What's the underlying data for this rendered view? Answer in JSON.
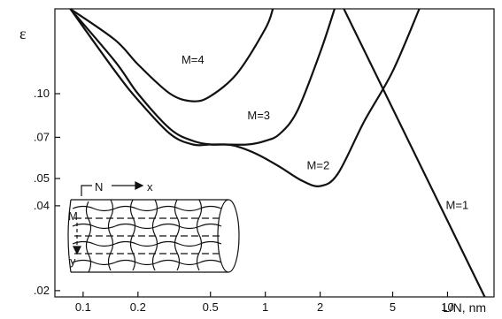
{
  "chart_data": {
    "type": "line",
    "title": "",
    "xlabel": "L/N, nm",
    "ylabel": "ε",
    "x_scale": "log",
    "y_scale": "log",
    "xlim": [
      0.07,
      18
    ],
    "ylim": [
      0.019,
      0.2
    ],
    "x_ticks": [
      {
        "value": 0.1,
        "label": "0.1"
      },
      {
        "value": 0.2,
        "label": "0.2"
      },
      {
        "value": 0.5,
        "label": "0.5"
      },
      {
        "value": 1,
        "label": "1"
      },
      {
        "value": 2,
        "label": "2"
      },
      {
        "value": 5,
        "label": "5"
      },
      {
        "value": 10,
        "label": "10"
      }
    ],
    "y_ticks": [
      {
        "value": 0.1,
        "label": ".10"
      },
      {
        "value": 0.07,
        "label": ".07"
      },
      {
        "value": 0.05,
        "label": ".05"
      },
      {
        "value": 0.04,
        "label": ".04"
      },
      {
        "value": 0.02,
        "label": ".02"
      }
    ],
    "grid": false,
    "legend": "none",
    "series": [
      {
        "name": "M=4",
        "label_at": {
          "x": 0.4,
          "y": 0.128
        },
        "points": [
          [
            0.085,
            0.2
          ],
          [
            0.15,
            0.155
          ],
          [
            0.2,
            0.127
          ],
          [
            0.3,
            0.1
          ],
          [
            0.4,
            0.094
          ],
          [
            0.5,
            0.098
          ],
          [
            0.7,
            0.118
          ],
          [
            1.0,
            0.17
          ],
          [
            1.1,
            0.2
          ]
        ]
      },
      {
        "name": "M=3",
        "label_at": {
          "x": 0.92,
          "y": 0.081
        },
        "points": [
          [
            0.085,
            0.2
          ],
          [
            0.15,
            0.13
          ],
          [
            0.2,
            0.1
          ],
          [
            0.3,
            0.075
          ],
          [
            0.4,
            0.068
          ],
          [
            0.5,
            0.066
          ],
          [
            0.6,
            0.066
          ],
          [
            0.8,
            0.066
          ],
          [
            1.0,
            0.068
          ],
          [
            1.2,
            0.072
          ],
          [
            1.5,
            0.087
          ],
          [
            2.0,
            0.14
          ],
          [
            2.4,
            0.2
          ]
        ]
      },
      {
        "name": "M=2",
        "label_at": {
          "x": 1.95,
          "y": 0.054
        },
        "points": [
          [
            0.085,
            0.2
          ],
          [
            0.15,
            0.12
          ],
          [
            0.2,
            0.095
          ],
          [
            0.3,
            0.072
          ],
          [
            0.4,
            0.066
          ],
          [
            0.5,
            0.066
          ],
          [
            0.6,
            0.066
          ],
          [
            0.7,
            0.065
          ],
          [
            0.9,
            0.061
          ],
          [
            1.2,
            0.055
          ],
          [
            1.6,
            0.049
          ],
          [
            2.0,
            0.047
          ],
          [
            2.5,
            0.052
          ],
          [
            3.5,
            0.08
          ],
          [
            5,
            0.12
          ],
          [
            7,
            0.2
          ]
        ]
      },
      {
        "name": "M=1",
        "label_at": {
          "x": 11.3,
          "y": 0.039
        },
        "points": [
          [
            2.7,
            0.2
          ],
          [
            16,
            0.019
          ]
        ]
      }
    ],
    "inset": {
      "description_labels": [
        "N",
        "x",
        "M",
        "y"
      ]
    }
  }
}
